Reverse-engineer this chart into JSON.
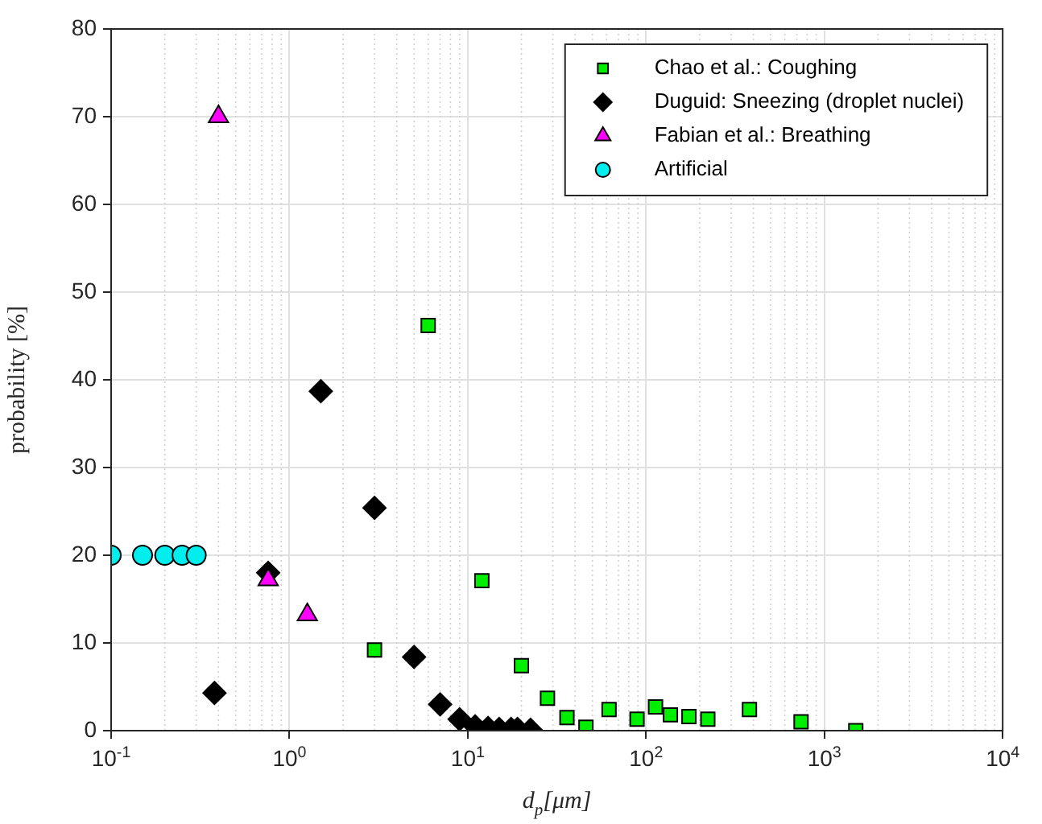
{
  "chart_data": {
    "type": "scatter",
    "xlabel": "d$_{p}$[μm]",
    "ylabel": "probability [%]",
    "log": "x",
    "xlim": [
      0.1,
      10000
    ],
    "ylim": [
      0,
      80
    ],
    "xticks": [
      {
        "value": 0.1,
        "label": "10$^{-1}$"
      },
      {
        "value": 1,
        "label": "10$^{0}$"
      },
      {
        "value": 10,
        "label": "10$^{1}$"
      },
      {
        "value": 100,
        "label": "10$^{2}$"
      },
      {
        "value": 1000,
        "label": "10$^{3}$"
      },
      {
        "value": 10000,
        "label": "10$^{4}$"
      }
    ],
    "yticks": [
      0,
      10,
      20,
      30,
      40,
      50,
      60,
      70,
      80
    ],
    "grid": true,
    "legend": "top right",
    "series": [
      {
        "name": "Chao et al.: Coughing",
        "color": "#00ee00",
        "marker": "square",
        "x": [
          3,
          6,
          12,
          20,
          28,
          36,
          46,
          62,
          89,
          113,
          137,
          174,
          222,
          380,
          740,
          1500
        ],
        "values": [
          9.2,
          46.2,
          17.1,
          7.4,
          3.7,
          1.5,
          0.4,
          2.4,
          1.3,
          2.7,
          1.8,
          1.6,
          1.3,
          2.4,
          1.0,
          0
        ]
      },
      {
        "name": "Duguid: Sneezing (droplet nuclei)",
        "color": "#000000",
        "marker": "diamond",
        "x": [
          0.38,
          0.76,
          1.5,
          3,
          5,
          7,
          9,
          11,
          13,
          15,
          17.5,
          19,
          22.5
        ],
        "values": [
          4.3,
          18,
          38.7,
          25.4,
          8.4,
          3,
          1.3,
          0.5,
          0.3,
          0.2,
          0.2,
          0.2,
          0.1
        ]
      },
      {
        "name": "Fabian et al.: Breathing",
        "color": "#ff00ff",
        "marker": "triangle",
        "x": [
          0.4,
          0.76,
          1.26
        ],
        "values": [
          70,
          17.2,
          13.2
        ]
      },
      {
        "name": "Artificial",
        "color": "#00eeee",
        "marker": "circle",
        "x": [
          0.1,
          0.15,
          0.2,
          0.25,
          0.3
        ],
        "values": [
          20,
          20,
          20,
          20,
          20
        ]
      }
    ]
  }
}
